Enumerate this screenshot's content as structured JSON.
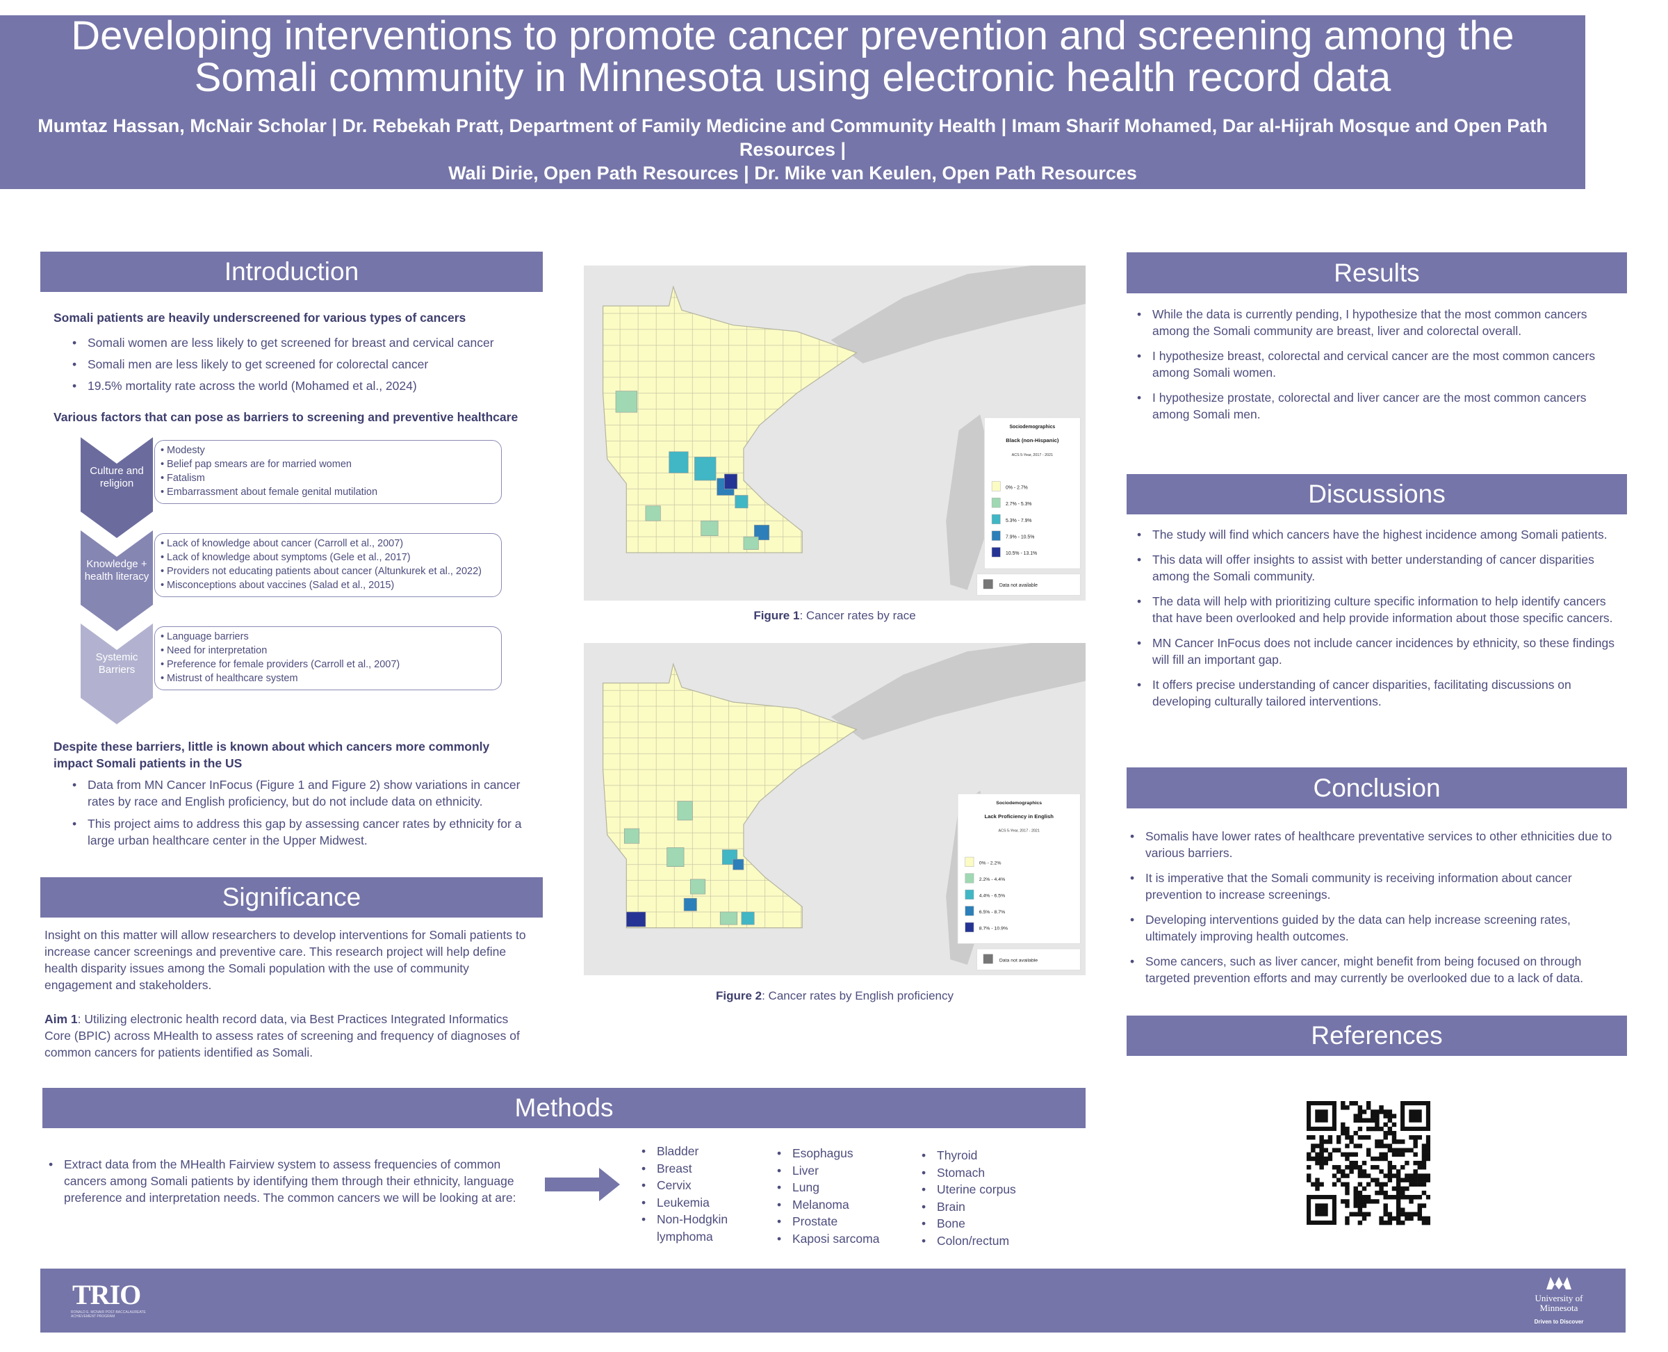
{
  "header": {
    "title": "Developing interventions to promote cancer prevention and screening among the Somali community in Minnesota using electronic health record data",
    "authors": [
      "Mumtaz Hassan, McNair Scholar | Dr. Rebekah Pratt, Department of Family Medicine and Community Health | Imam Sharif Mohamed, Dar al-Hijrah Mosque and Open Path Resources |",
      "Wali Dirie, Open Path Resources | Dr. Mike van Keulen, Open Path Resources"
    ]
  },
  "introduction": {
    "heading": "Introduction",
    "lead": "Somali patients are heavily underscreened for various types of cancers",
    "lead_bullets": [
      "Somali women are less likely to get screened for breast and cervical cancer",
      "Somali men are less likely to get screened for colorectal cancer",
      "19.5% mortality rate across the world (Mohamed et al., 2024)"
    ],
    "barriers_heading": "Various factors that can pose as barriers to screening and preventive healthcare",
    "barriers": [
      {
        "label": "Culture and religion",
        "color": "#6b6b9e",
        "items": [
          "Modesty",
          "Belief pap smears are for married women",
          "Fatalism",
          "Embarrassment about female genital mutilation"
        ]
      },
      {
        "label": "Knowledge + health literacy",
        "color": "#8686b3",
        "items": [
          "Lack of knowledge about cancer (Carroll et al., 2007)",
          "Lack of knowledge about symptoms (Gele et al., 2017)",
          "Providers not educating patients about cancer (Altunkurek et al., 2022)",
          "Misconceptions about vaccines (Salad et al., 2015)"
        ]
      },
      {
        "label": "Systemic Barriers",
        "color": "#b2b2d0",
        "items": [
          "Language barriers",
          "Need for interpretation",
          "Preference for female providers (Carroll et al., 2007)",
          "Mistrust of healthcare system"
        ]
      }
    ],
    "gap_heading": "Despite these barriers, little is known about which cancers more commonly impact Somali patients in the US",
    "gap_bullets": [
      "Data from MN Cancer InFocus (Figure 1 and Figure 2) show variations in cancer rates by race and English proficiency, but do not include data on ethnicity.",
      "This project aims to address this gap by assessing cancer rates by ethnicity for a large urban healthcare center in the Upper Midwest."
    ]
  },
  "significance": {
    "heading": "Significance",
    "paragraph": "Insight on this matter will allow researchers to develop interventions for Somali patients to increase cancer screenings and preventive care. This research project will help define health disparity issues among the Somali population with the use of community engagement and stakeholders.",
    "aim_label": "Aim 1",
    "aim_text": ": Utilizing electronic health record data, via Best Practices Integrated Informatics Core (BPIC) across MHealth to assess rates of screening and frequency of diagnoses of common cancers for patients identified as Somali."
  },
  "figures": [
    {
      "legend_title": "Sociodemographics",
      "legend_subtitle": "Black (non-Hispanic)",
      "legend_source": "ACS 5-Year, 2017 - 2021",
      "bins": [
        {
          "label": "0% - 2.7%",
          "color": "#fbfbc4"
        },
        {
          "label": "2.7% - 5.3%",
          "color": "#9fd8b2"
        },
        {
          "label": "5.3% - 7.9%",
          "color": "#41b6c4"
        },
        {
          "label": "7.9% - 10.5%",
          "color": "#2c7fb8"
        },
        {
          "label": "10.5% - 13.1%",
          "color": "#253494"
        }
      ],
      "na_label": "Data not available",
      "caption_label": "Figure 1",
      "caption_text": ": Cancer rates by race"
    },
    {
      "legend_title": "Sociodemographics",
      "legend_subtitle": "Lack Proficiency in English",
      "legend_source": "ACS 5-Year, 2017 - 2021",
      "bins": [
        {
          "label": "0% - 2.2%",
          "color": "#fbfbc4"
        },
        {
          "label": "2.2% - 4.4%",
          "color": "#9fd8b2"
        },
        {
          "label": "4.4% - 6.5%",
          "color": "#41b6c4"
        },
        {
          "label": "6.5% - 8.7%",
          "color": "#2c7fb8"
        },
        {
          "label": "8.7% - 10.9%",
          "color": "#253494"
        }
      ],
      "na_label": "Data not available",
      "caption_label": "Figure 2",
      "caption_text": ": Cancer rates by English proficiency"
    }
  ],
  "results": {
    "heading": "Results",
    "bullets": [
      "While the data is currently pending, I hypothesize that the most common cancers among the Somali community are breast, liver and colorectal overall.",
      "I hypothesize breast, colorectal and cervical cancer are the most common cancers among Somali women.",
      "I hypothesize prostate, colorectal and liver cancer are the most common cancers among Somali men."
    ]
  },
  "discussions": {
    "heading": "Discussions",
    "bullets": [
      "The study will find which cancers have the highest incidence among Somali patients.",
      "This data will offer insights to assist with better understanding of cancer disparities among the Somali community.",
      "The data will help with prioritizing culture specific information to help identify cancers that have been overlooked and help provide information about those specific cancers.",
      "MN Cancer InFocus does not include cancer incidences by ethnicity, so these findings will fill an important gap.",
      "It offers precise understanding of cancer disparities, facilitating discussions on developing culturally tailored interventions."
    ]
  },
  "conclusion": {
    "heading": "Conclusion",
    "bullets": [
      "Somalis have lower rates of healthcare preventative services to other ethnicities due to various barriers.",
      "It is imperative that the Somali community is receiving information about cancer prevention to increase screenings.",
      "Developing interventions guided by the data can help increase screening rates, ultimately improving health outcomes.",
      "Some cancers, such as liver cancer, might benefit from being focused on through targeted prevention efforts and may currently be overlooked due to a lack of data."
    ]
  },
  "references": {
    "heading": "References"
  },
  "methods": {
    "heading": "Methods",
    "text": "Extract data from the MHealth Fairview system to assess frequencies of common cancers among Somali patients by identifying them through their ethnicity, language preference and interpretation needs. The common cancers we will be looking at are:",
    "cancers": [
      [
        "Bladder",
        "Breast",
        "Cervix",
        "Leukemia",
        "Non-Hodgkin lymphoma"
      ],
      [
        "Esophagus",
        "Liver",
        "Lung",
        "Melanoma",
        "Prostate",
        "Kaposi sarcoma"
      ],
      [
        "Thyroid",
        "Stomach",
        "Uterine corpus",
        "Brain",
        "Bone",
        "Colon/rectum"
      ]
    ]
  },
  "footer": {
    "trio": "TRIO",
    "trio_sub": "RONALD E. MCNAIR POST-BACCALAUREATE ACHIEVEMENT PROGRAM",
    "university": "University of Minnesota",
    "tagline": "Driven to Discover"
  }
}
